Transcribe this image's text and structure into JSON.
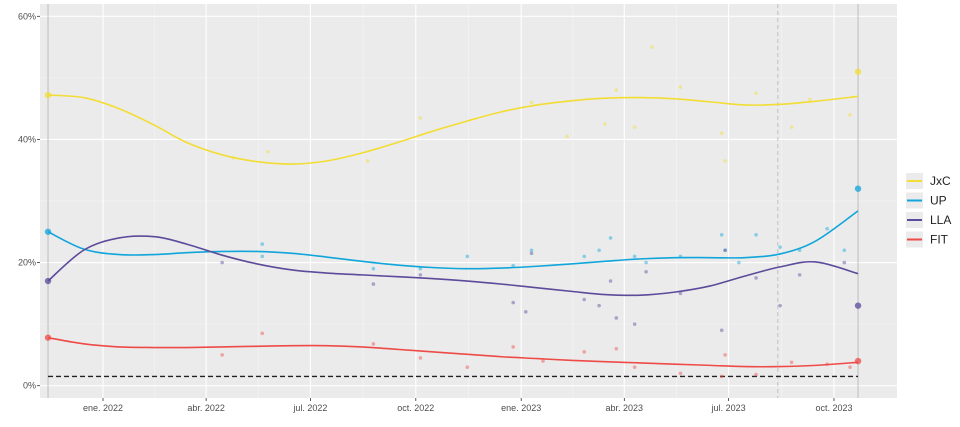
{
  "chart_data": {
    "type": "line",
    "title": "",
    "xlabel": "",
    "ylabel": "",
    "x_ticks": [
      "ene. 2022",
      "abr. 2022",
      "jul. 2022",
      "oct. 2022",
      "ene. 2023",
      "abr. 2023",
      "jul. 2023",
      "oct. 2023"
    ],
    "y_ticks": [
      "0%",
      "20%",
      "40%",
      "60%"
    ],
    "xlim": [
      "2021-11-07",
      "2023-11-25"
    ],
    "ylim": [
      -2,
      62
    ],
    "grid": true,
    "legend_position": "right",
    "reference_lines": {
      "threshold_y": 1.5,
      "election_start": "2021-11-14",
      "election_end": "2023-10-22",
      "primary_date": "2023-08-13"
    },
    "series": [
      {
        "name": "JxC",
        "color": "#f2dd35",
        "trend": [
          [
            "2021-11-14",
            47.2
          ],
          [
            "2021-12-15",
            46.8
          ],
          [
            "2022-01-15",
            45.0
          ],
          [
            "2022-02-15",
            42.3
          ],
          [
            "2022-03-15",
            39.5
          ],
          [
            "2022-04-15",
            37.5
          ],
          [
            "2022-05-15",
            36.4
          ],
          [
            "2022-06-15",
            36.0
          ],
          [
            "2022-07-15",
            36.5
          ],
          [
            "2022-08-15",
            37.8
          ],
          [
            "2022-09-15",
            39.5
          ],
          [
            "2022-10-15",
            41.3
          ],
          [
            "2022-11-15",
            43.0
          ],
          [
            "2022-12-15",
            44.5
          ],
          [
            "2023-01-15",
            45.6
          ],
          [
            "2023-02-15",
            46.3
          ],
          [
            "2023-03-15",
            46.7
          ],
          [
            "2023-04-15",
            46.8
          ],
          [
            "2023-05-15",
            46.6
          ],
          [
            "2023-06-15",
            46.1
          ],
          [
            "2023-07-15",
            45.6
          ],
          [
            "2023-08-15",
            45.7
          ],
          [
            "2023-09-15",
            46.2
          ],
          [
            "2023-10-22",
            47.0
          ]
        ],
        "points": [
          [
            "2021-11-14",
            47.2
          ],
          [
            "2022-04-25",
            37.0
          ],
          [
            "2022-05-25",
            38.0
          ],
          [
            "2022-08-20",
            36.5
          ],
          [
            "2022-10-05",
            43.5
          ],
          [
            "2023-01-10",
            46.0
          ],
          [
            "2023-02-10",
            40.5
          ],
          [
            "2023-03-15",
            42.5
          ],
          [
            "2023-03-25",
            48.0
          ],
          [
            "2023-04-10",
            42.0
          ],
          [
            "2023-04-25",
            55.0
          ],
          [
            "2023-05-20",
            48.5
          ],
          [
            "2023-06-25",
            41.0
          ],
          [
            "2023-06-28",
            36.5
          ],
          [
            "2023-07-25",
            47.5
          ],
          [
            "2023-08-25",
            42.0
          ],
          [
            "2023-09-10",
            46.5
          ],
          [
            "2023-10-15",
            44.0
          ],
          [
            "2023-10-22",
            51.0
          ]
        ]
      },
      {
        "name": "UP",
        "color": "#10a5db",
        "trend": [
          [
            "2021-11-14",
            25.0
          ],
          [
            "2021-12-15",
            22.2
          ],
          [
            "2022-01-15",
            21.3
          ],
          [
            "2022-02-15",
            21.3
          ],
          [
            "2022-03-15",
            21.6
          ],
          [
            "2022-04-15",
            21.8
          ],
          [
            "2022-05-15",
            21.8
          ],
          [
            "2022-06-15",
            21.5
          ],
          [
            "2022-07-15",
            20.9
          ],
          [
            "2022-08-15",
            20.2
          ],
          [
            "2022-09-15",
            19.6
          ],
          [
            "2022-10-15",
            19.2
          ],
          [
            "2022-11-15",
            19.0
          ],
          [
            "2022-12-15",
            19.1
          ],
          [
            "2023-01-15",
            19.4
          ],
          [
            "2023-02-15",
            19.8
          ],
          [
            "2023-03-15",
            20.2
          ],
          [
            "2023-04-15",
            20.6
          ],
          [
            "2023-05-15",
            20.8
          ],
          [
            "2023-06-15",
            20.8
          ],
          [
            "2023-07-15",
            20.8
          ],
          [
            "2023-08-15",
            21.4
          ],
          [
            "2023-09-15",
            23.5
          ],
          [
            "2023-10-22",
            28.4
          ]
        ],
        "points": [
          [
            "2021-11-14",
            25.0
          ],
          [
            "2022-05-20",
            23.0
          ],
          [
            "2022-05-20",
            21.0
          ],
          [
            "2022-08-25",
            19.0
          ],
          [
            "2022-10-05",
            19.0
          ],
          [
            "2022-11-15",
            21.0
          ],
          [
            "2022-12-25",
            19.5
          ],
          [
            "2023-01-10",
            22.0
          ],
          [
            "2023-02-25",
            21.0
          ],
          [
            "2023-03-10",
            22.0
          ],
          [
            "2023-03-20",
            24.0
          ],
          [
            "2023-04-10",
            21.0
          ],
          [
            "2023-04-20",
            20.0
          ],
          [
            "2023-05-20",
            21.0
          ],
          [
            "2023-06-25",
            24.5
          ],
          [
            "2023-06-28",
            22.0
          ],
          [
            "2023-07-10",
            20.0
          ],
          [
            "2023-07-25",
            24.5
          ],
          [
            "2023-08-15",
            22.5
          ],
          [
            "2023-09-01",
            22.0
          ],
          [
            "2023-09-25",
            25.5
          ],
          [
            "2023-10-10",
            22.0
          ],
          [
            "2023-10-22",
            32.0
          ]
        ]
      },
      {
        "name": "LLA",
        "color": "#5c4a9a",
        "trend": [
          [
            "2021-11-14",
            17.0
          ],
          [
            "2021-12-15",
            22.0
          ],
          [
            "2022-01-15",
            24.0
          ],
          [
            "2022-02-15",
            24.2
          ],
          [
            "2022-03-15",
            23.0
          ],
          [
            "2022-04-15",
            21.2
          ],
          [
            "2022-05-15",
            19.8
          ],
          [
            "2022-06-15",
            18.8
          ],
          [
            "2022-07-15",
            18.3
          ],
          [
            "2022-08-15",
            18.0
          ],
          [
            "2022-09-15",
            17.7
          ],
          [
            "2022-10-15",
            17.4
          ],
          [
            "2022-11-15",
            17.0
          ],
          [
            "2022-12-15",
            16.5
          ],
          [
            "2023-01-15",
            15.9
          ],
          [
            "2023-02-15",
            15.3
          ],
          [
            "2023-03-15",
            14.8
          ],
          [
            "2023-04-15",
            14.7
          ],
          [
            "2023-05-15",
            15.2
          ],
          [
            "2023-06-15",
            16.2
          ],
          [
            "2023-07-15",
            17.8
          ],
          [
            "2023-08-15",
            19.3
          ],
          [
            "2023-09-15",
            20.1
          ],
          [
            "2023-10-22",
            18.2
          ]
        ],
        "points": [
          [
            "2021-11-14",
            17.0
          ],
          [
            "2022-04-15",
            20.0
          ],
          [
            "2022-08-25",
            16.5
          ],
          [
            "2022-10-05",
            18.0
          ],
          [
            "2022-12-25",
            13.5
          ],
          [
            "2023-01-05",
            12.0
          ],
          [
            "2023-01-10",
            21.5
          ],
          [
            "2023-02-25",
            14.0
          ],
          [
            "2023-03-10",
            13.0
          ],
          [
            "2023-03-20",
            17.0
          ],
          [
            "2023-03-25",
            11.0
          ],
          [
            "2023-04-10",
            10.0
          ],
          [
            "2023-04-20",
            18.5
          ],
          [
            "2023-05-20",
            15.0
          ],
          [
            "2023-06-25",
            9.0
          ],
          [
            "2023-06-28",
            22.0
          ],
          [
            "2023-07-25",
            17.5
          ],
          [
            "2023-08-15",
            13.0
          ],
          [
            "2023-09-01",
            18.0
          ],
          [
            "2023-10-10",
            20.0
          ],
          [
            "2023-10-22",
            13.0
          ]
        ]
      },
      {
        "name": "FIT",
        "color": "#ee4b48",
        "trend": [
          [
            "2021-11-14",
            7.8
          ],
          [
            "2021-12-15",
            6.8
          ],
          [
            "2022-01-15",
            6.3
          ],
          [
            "2022-02-15",
            6.2
          ],
          [
            "2022-03-15",
            6.2
          ],
          [
            "2022-04-15",
            6.3
          ],
          [
            "2022-05-15",
            6.4
          ],
          [
            "2022-06-15",
            6.5
          ],
          [
            "2022-07-15",
            6.5
          ],
          [
            "2022-08-15",
            6.3
          ],
          [
            "2022-09-15",
            5.9
          ],
          [
            "2022-10-15",
            5.5
          ],
          [
            "2022-11-15",
            5.1
          ],
          [
            "2022-12-15",
            4.7
          ],
          [
            "2023-01-15",
            4.4
          ],
          [
            "2023-02-15",
            4.1
          ],
          [
            "2023-03-15",
            3.9
          ],
          [
            "2023-04-15",
            3.7
          ],
          [
            "2023-05-15",
            3.5
          ],
          [
            "2023-06-15",
            3.3
          ],
          [
            "2023-07-15",
            3.1
          ],
          [
            "2023-08-15",
            3.1
          ],
          [
            "2023-09-15",
            3.3
          ],
          [
            "2023-10-22",
            3.8
          ]
        ],
        "points": [
          [
            "2021-11-14",
            7.8
          ],
          [
            "2022-04-15",
            5.0
          ],
          [
            "2022-05-20",
            8.5
          ],
          [
            "2022-08-25",
            6.8
          ],
          [
            "2022-10-05",
            4.5
          ],
          [
            "2022-11-15",
            3.0
          ],
          [
            "2022-12-25",
            6.3
          ],
          [
            "2023-01-20",
            4.0
          ],
          [
            "2023-02-25",
            5.5
          ],
          [
            "2023-03-25",
            6.0
          ],
          [
            "2023-04-10",
            3.0
          ],
          [
            "2023-05-20",
            2.0
          ],
          [
            "2023-06-25",
            1.5
          ],
          [
            "2023-06-28",
            5.0
          ],
          [
            "2023-07-25",
            1.8
          ],
          [
            "2023-08-25",
            3.8
          ],
          [
            "2023-09-25",
            3.5
          ],
          [
            "2023-10-15",
            3.0
          ],
          [
            "2023-10-22",
            4.0
          ]
        ]
      }
    ]
  }
}
